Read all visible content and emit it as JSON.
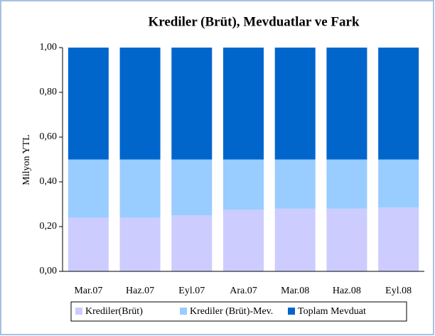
{
  "chart_data": {
    "type": "stacked_bar",
    "title": "Krediler (Brüt), Mevduatlar ve Fark",
    "y_label": "Milyon YTL",
    "categories": [
      "Mar.07",
      "Haz.07",
      "Eyl.07",
      "Ara.07",
      "Mar.08",
      "Haz.08",
      "Eyl.08"
    ],
    "series": [
      {
        "name": "Krediler(Brüt)",
        "color": "#ccccff",
        "values": [
          0.24,
          0.24,
          0.25,
          0.275,
          0.28,
          0.28,
          0.285
        ]
      },
      {
        "name": "Krediler (Brüt)-Mev.",
        "color": "#99ccff",
        "values": [
          0.26,
          0.26,
          0.25,
          0.225,
          0.22,
          0.22,
          0.215
        ]
      },
      {
        "name": "Toplam Mevduat",
        "color": "#0066cc",
        "values": [
          0.5,
          0.5,
          0.5,
          0.5,
          0.5,
          0.5,
          0.5
        ]
      }
    ],
    "ylim": [
      0,
      1
    ],
    "yticks": [
      {
        "value": 0,
        "label": "0,00"
      },
      {
        "value": 0.2,
        "label": "0,20"
      },
      {
        "value": 0.4,
        "label": "0,40"
      },
      {
        "value": 0.6,
        "label": "0,60"
      },
      {
        "value": 0.8,
        "label": "0,80"
      },
      {
        "value": 1,
        "label": "1,00"
      }
    ],
    "legend": "bottom"
  }
}
